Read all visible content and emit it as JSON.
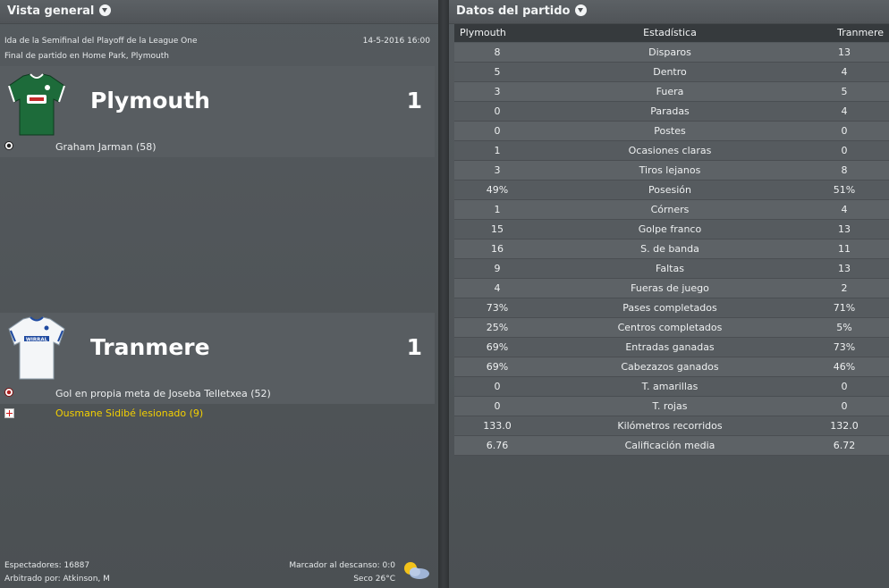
{
  "left_panel": {
    "title": "Vista general",
    "competition": "Ida de la Semifinal del Playoff de la League One",
    "datetime": "14-5-2016 16:00",
    "venue": "Final de partido en Home Park, Plymouth",
    "home": {
      "name": "Plymouth",
      "score": "1",
      "shirt_color": "#1d6b3a",
      "events": [
        {
          "type": "goal",
          "icon": "ball-icon",
          "text": "Graham Jarman (58)"
        }
      ]
    },
    "away": {
      "name": "Tranmere",
      "score": "1",
      "shirt_color": "#ffffff",
      "events": [
        {
          "type": "own-goal",
          "icon": "own-goal-icon",
          "text": "Gol en propia meta de Joseba Telletxea (52)"
        },
        {
          "type": "injury",
          "icon": "injury-icon",
          "text": "Ousmane Sidibé lesionado (9)"
        }
      ]
    },
    "footer": {
      "attendance": "Espectadores: 16887",
      "referee": "Arbitrado por: Atkinson, M",
      "halftime": "Marcador al descanso: 0:0",
      "weather": "Seco 26°C",
      "weather_icon": "sun-cloud-icon"
    }
  },
  "right_panel": {
    "title": "Datos del partido",
    "columns": [
      "Plymouth",
      "Estadística",
      "Tranmere"
    ],
    "rows": [
      [
        "8",
        "Disparos",
        "13"
      ],
      [
        "5",
        "Dentro",
        "4"
      ],
      [
        "3",
        "Fuera",
        "5"
      ],
      [
        "0",
        "Paradas",
        "4"
      ],
      [
        "0",
        "Postes",
        "0"
      ],
      [
        "1",
        "Ocasiones claras",
        "0"
      ],
      [
        "3",
        "Tiros lejanos",
        "8"
      ],
      [
        "49%",
        "Posesión",
        "51%"
      ],
      [
        "1",
        "Córners",
        "4"
      ],
      [
        "15",
        "Golpe franco",
        "13"
      ],
      [
        "16",
        "S. de banda",
        "11"
      ],
      [
        "9",
        "Faltas",
        "13"
      ],
      [
        "4",
        "Fueras de juego",
        "2"
      ],
      [
        "73%",
        "Pases completados",
        "71%"
      ],
      [
        "25%",
        "Centros completados",
        "5%"
      ],
      [
        "69%",
        "Entradas ganadas",
        "73%"
      ],
      [
        "69%",
        "Cabezazos ganados",
        "46%"
      ],
      [
        "0",
        "T. amarillas",
        "0"
      ],
      [
        "0",
        "T. rojas",
        "0"
      ],
      [
        "133.0",
        "Kilómetros recorridos",
        "132.0"
      ],
      [
        "6.76",
        "Calificación media",
        "6.72"
      ]
    ]
  }
}
